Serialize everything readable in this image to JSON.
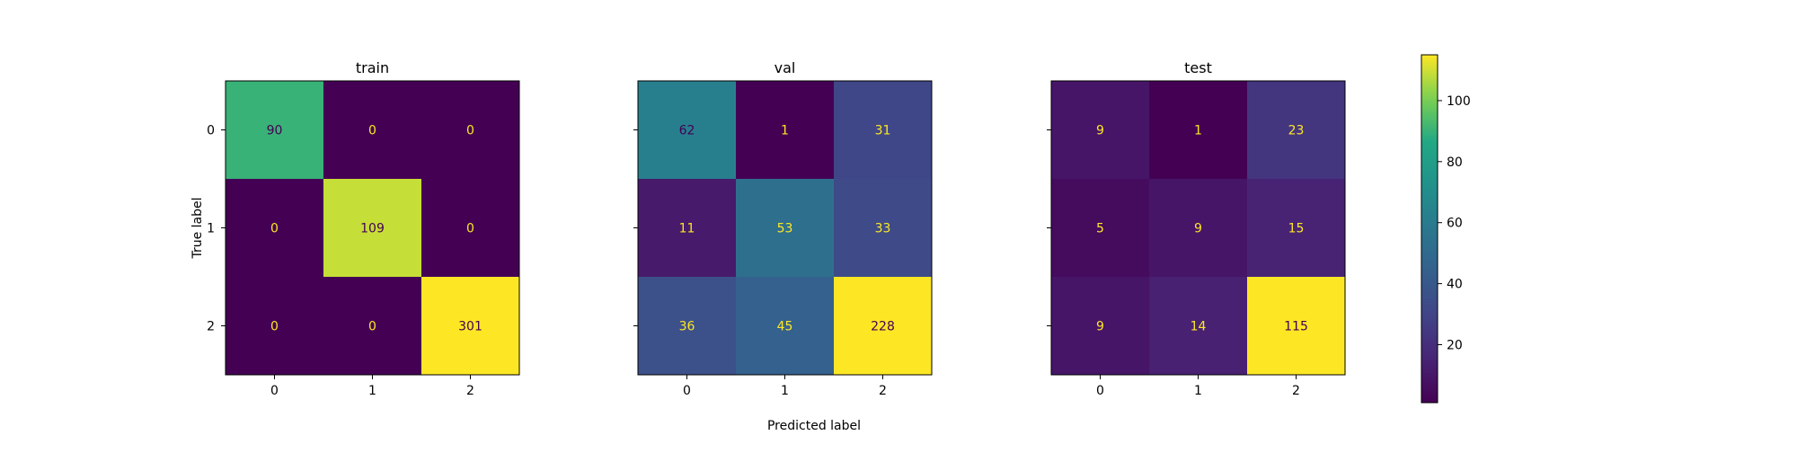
{
  "chart_data": {
    "type": "heatmap",
    "colormap": "viridis",
    "colorbar": {
      "min": 1,
      "max": 115,
      "ticks": [
        20,
        40,
        60,
        80,
        100
      ]
    },
    "xlabel": "Predicted label",
    "ylabel": "True label",
    "matrices": [
      {
        "title": "train",
        "x_ticks": [
          "0",
          "1",
          "2"
        ],
        "y_ticks": [
          "0",
          "1",
          "2"
        ],
        "values": [
          [
            90,
            0,
            0
          ],
          [
            0,
            109,
            0
          ],
          [
            0,
            0,
            301
          ]
        ]
      },
      {
        "title": "val",
        "x_ticks": [
          "0",
          "1",
          "2"
        ],
        "y_ticks": [
          "0",
          "1",
          "2"
        ],
        "values": [
          [
            62,
            1,
            31
          ],
          [
            11,
            53,
            33
          ],
          [
            36,
            45,
            228
          ]
        ]
      },
      {
        "title": "test",
        "x_ticks": [
          "0",
          "1",
          "2"
        ],
        "y_ticks": [
          "0",
          "1",
          "2"
        ],
        "values": [
          [
            9,
            1,
            23
          ],
          [
            5,
            9,
            15
          ],
          [
            9,
            14,
            115
          ]
        ]
      }
    ]
  }
}
